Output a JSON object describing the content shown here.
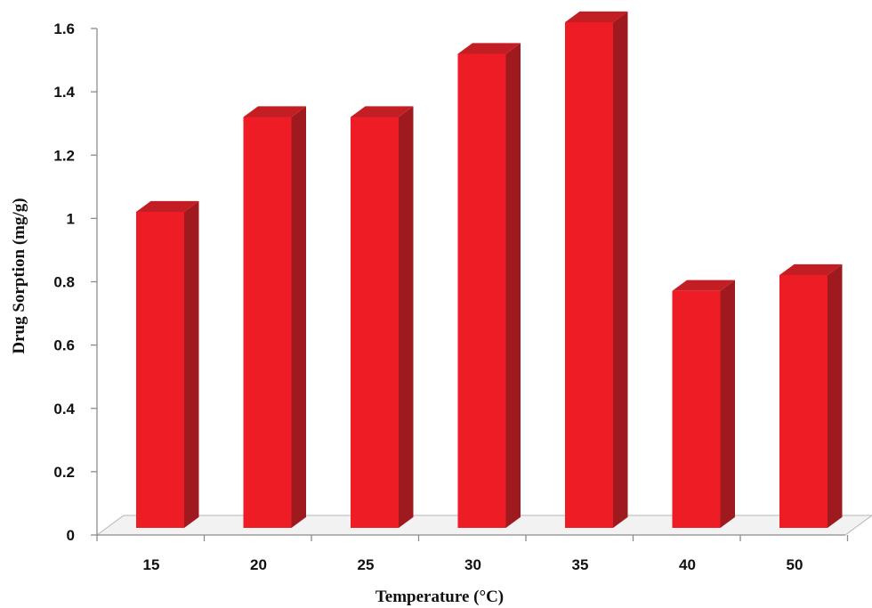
{
  "chart_data": {
    "type": "bar",
    "style": "3d-column",
    "categories": [
      "15",
      "20",
      "25",
      "30",
      "35",
      "40",
      "50"
    ],
    "values": [
      1.0,
      1.3,
      1.3,
      1.5,
      1.6,
      0.75,
      0.8
    ],
    "ylim": [
      0,
      1.6
    ],
    "yticks": [
      "0",
      "0.2",
      "0.4",
      "0.6",
      "0.8",
      "1",
      "1.2",
      "1.4",
      "1.6"
    ],
    "xlabel": "Temperature (°C)",
    "ylabel": "Drug Sorption (mg/g)",
    "grid": false,
    "legend": "none",
    "colors": {
      "bar_front": "#ee1c24",
      "bar_side": "#9e1a1e",
      "bar_top": "#c41e25",
      "floor": "#f2f2f2",
      "axis": "#8c8c8c"
    }
  }
}
